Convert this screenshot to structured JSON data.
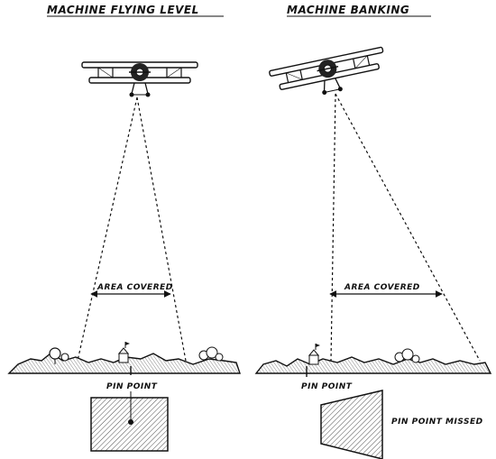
{
  "panels": {
    "left": {
      "title": "MACHINE FLYING LEVEL",
      "area_label": "AREA COVERED",
      "pin_label": "PIN POINT"
    },
    "right": {
      "title": "MACHINE BANKING",
      "area_label": "AREA COVERED",
      "pin_label": "PIN POINT",
      "missed_label": "PIN POINT MISSED"
    }
  },
  "colors": {
    "ink": "#111111",
    "paper": "#ffffff"
  }
}
